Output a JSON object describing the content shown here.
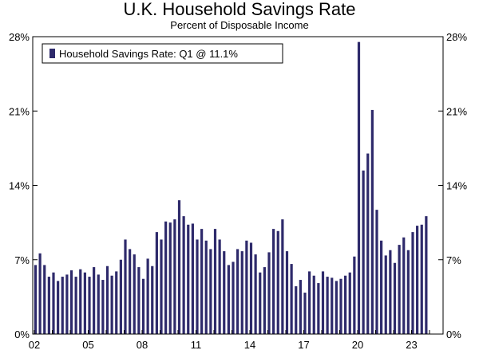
{
  "chart_data": {
    "type": "bar",
    "title": "U.K. Household Savings Rate",
    "subtitle": "Percent of Disposable Income",
    "xlabel": "",
    "ylabel": "",
    "ylim": [
      0,
      28
    ],
    "yticks": [
      "0%",
      "7%",
      "14%",
      "21%",
      "28%"
    ],
    "ytick_values": [
      0,
      7,
      14,
      21,
      28
    ],
    "xtick_labels": [
      "02",
      "05",
      "08",
      "11",
      "14",
      "17",
      "20",
      "23"
    ],
    "grid": false,
    "legend_position": "top-left",
    "bar_color": "#2e2a6b",
    "series": [
      {
        "name": "Household Savings Rate: Q1 @ 11.1%",
        "quarters_start": "2002-Q1",
        "values": [
          6.5,
          7.6,
          6.5,
          5.4,
          5.8,
          5.0,
          5.4,
          5.6,
          6.0,
          5.4,
          6.1,
          5.8,
          5.4,
          6.3,
          5.6,
          5.1,
          6.4,
          5.5,
          5.9,
          7.0,
          8.9,
          8.0,
          7.5,
          6.3,
          5.2,
          7.1,
          6.4,
          9.6,
          8.9,
          10.6,
          10.5,
          10.8,
          12.6,
          11.1,
          10.3,
          10.4,
          8.9,
          9.9,
          8.8,
          8.0,
          9.9,
          8.9,
          7.8,
          6.5,
          6.8,
          8.0,
          7.8,
          8.8,
          8.6,
          7.5,
          5.8,
          6.3,
          7.7,
          9.9,
          9.7,
          10.8,
          7.8,
          6.6,
          4.5,
          5.1,
          3.9,
          5.9,
          5.5,
          4.8,
          5.9,
          5.4,
          5.3,
          5.0,
          5.2,
          5.5,
          5.8,
          7.3,
          27.5,
          15.4,
          17.0,
          21.1,
          11.7,
          8.8,
          7.4,
          7.9,
          6.7,
          8.4,
          9.1,
          7.9,
          9.6,
          10.2,
          10.3,
          11.1
        ]
      }
    ]
  }
}
